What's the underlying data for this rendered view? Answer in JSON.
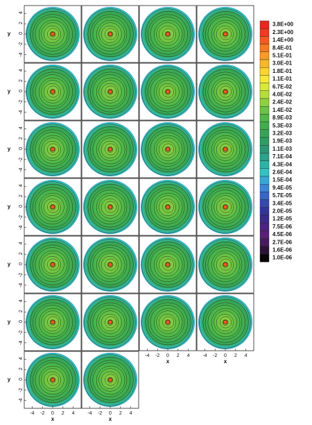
{
  "chart_data": {
    "type": "contour-grid",
    "xlabel": "x",
    "ylabel": "y",
    "xlim": [
      -5,
      5
    ],
    "ylim": [
      -5,
      5
    ],
    "xticks": [
      -4,
      -2,
      0,
      2,
      4
    ],
    "yticks": [
      -4,
      -2,
      0,
      2,
      4
    ],
    "colorbar": {
      "ticks": [
        {
          "value": 3.8,
          "label": "3.8E+00"
        },
        {
          "value": 2.3,
          "label": "2.3E+00"
        },
        {
          "value": 1.4,
          "label": "1.4E+00"
        },
        {
          "value": 0.84,
          "label": "8.4E-01"
        },
        {
          "value": 0.51,
          "label": "5.1E-01"
        },
        {
          "value": 0.3,
          "label": "3.0E-01"
        },
        {
          "value": 0.18,
          "label": "1.8E-01"
        },
        {
          "value": 0.11,
          "label": "1.1E-01"
        },
        {
          "value": 0.067,
          "label": "6.7E-02"
        },
        {
          "value": 0.04,
          "label": "4.0E-02"
        },
        {
          "value": 0.024,
          "label": "2.4E-02"
        },
        {
          "value": 0.014,
          "label": "1.4E-02"
        },
        {
          "value": 0.0089,
          "label": "8.9E-03"
        },
        {
          "value": 0.0053,
          "label": "5.3E-03"
        },
        {
          "value": 0.0032,
          "label": "3.2E-03"
        },
        {
          "value": 0.0019,
          "label": "1.9E-03"
        },
        {
          "value": 0.0011,
          "label": "1.1E-03"
        },
        {
          "value": 0.00071,
          "label": "7.1E-04"
        },
        {
          "value": 0.00043,
          "label": "4.3E-04"
        },
        {
          "value": 0.00026,
          "label": "2.6E-04"
        },
        {
          "value": 0.00015,
          "label": "1.5E-04"
        },
        {
          "value": 9.4e-05,
          "label": "9.4E-05"
        },
        {
          "value": 5.7e-05,
          "label": "5.7E-05"
        },
        {
          "value": 3.4e-05,
          "label": "3.4E-05"
        },
        {
          "value": 2e-05,
          "label": "2.0E-05"
        },
        {
          "value": 1.2e-05,
          "label": "1.2E-05"
        },
        {
          "value": 7.5e-06,
          "label": "7.5E-06"
        },
        {
          "value": 4.5e-06,
          "label": "4.5E-06"
        },
        {
          "value": 2.7e-06,
          "label": "2.7E-06"
        },
        {
          "value": 1.6e-06,
          "label": "1.6E-06"
        },
        {
          "value": 1e-06,
          "label": "1.0E-06"
        }
      ],
      "colors": [
        "#e8281e",
        "#ef3b1f",
        "#f25a22",
        "#f47a26",
        "#f79a2a",
        "#fab52e",
        "#fdd232",
        "#f5e83a",
        "#d8e83c",
        "#b5dd3e",
        "#8fd040",
        "#6cc444",
        "#4fb948",
        "#3fae4c",
        "#36a457",
        "#2f9c64",
        "#2c9775",
        "#2aa28c",
        "#2fb3a8",
        "#36c0c4",
        "#3aa6d8",
        "#3a86d4",
        "#3866c4",
        "#3549b0",
        "#33359a",
        "#3a2a8a",
        "#4b2382",
        "#5a1e7a",
        "#451a5e",
        "#2b1238",
        "#0a0508"
      ]
    }
  }
}
